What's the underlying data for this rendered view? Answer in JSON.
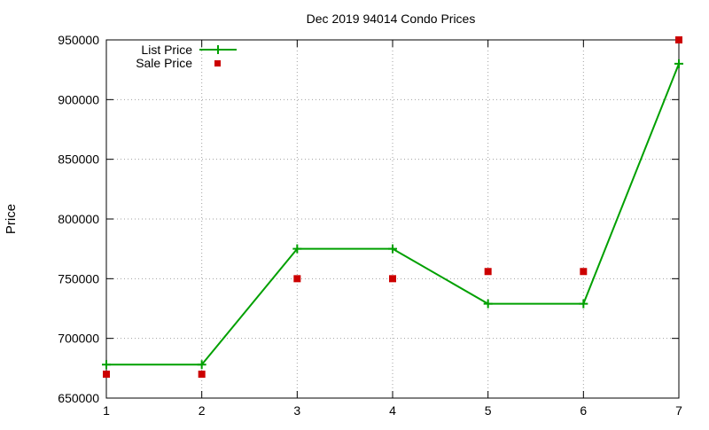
{
  "chart_data": {
    "type": "line",
    "title": "Dec 2019 94014 Condo Prices",
    "xlabel": "",
    "ylabel": "Price",
    "x": [
      1,
      2,
      3,
      4,
      5,
      6,
      7
    ],
    "xlim": [
      1,
      7
    ],
    "ylim": [
      650000,
      950000
    ],
    "xticks": [
      "1",
      "2",
      "3",
      "4",
      "5",
      "6",
      "7"
    ],
    "yticks": [
      "650000",
      "700000",
      "750000",
      "800000",
      "850000",
      "900000",
      "950000"
    ],
    "grid": true,
    "legend_position": "top-left",
    "series": [
      {
        "name": "List Price",
        "style": "line-with-plus-markers",
        "color": "#00a000",
        "values": [
          678000,
          678000,
          775000,
          775000,
          729000,
          729000,
          930000
        ]
      },
      {
        "name": "Sale Price",
        "style": "square-markers",
        "color": "#cc0000",
        "values": [
          670000,
          670000,
          750000,
          750000,
          756000,
          756000,
          950000
        ]
      }
    ]
  }
}
